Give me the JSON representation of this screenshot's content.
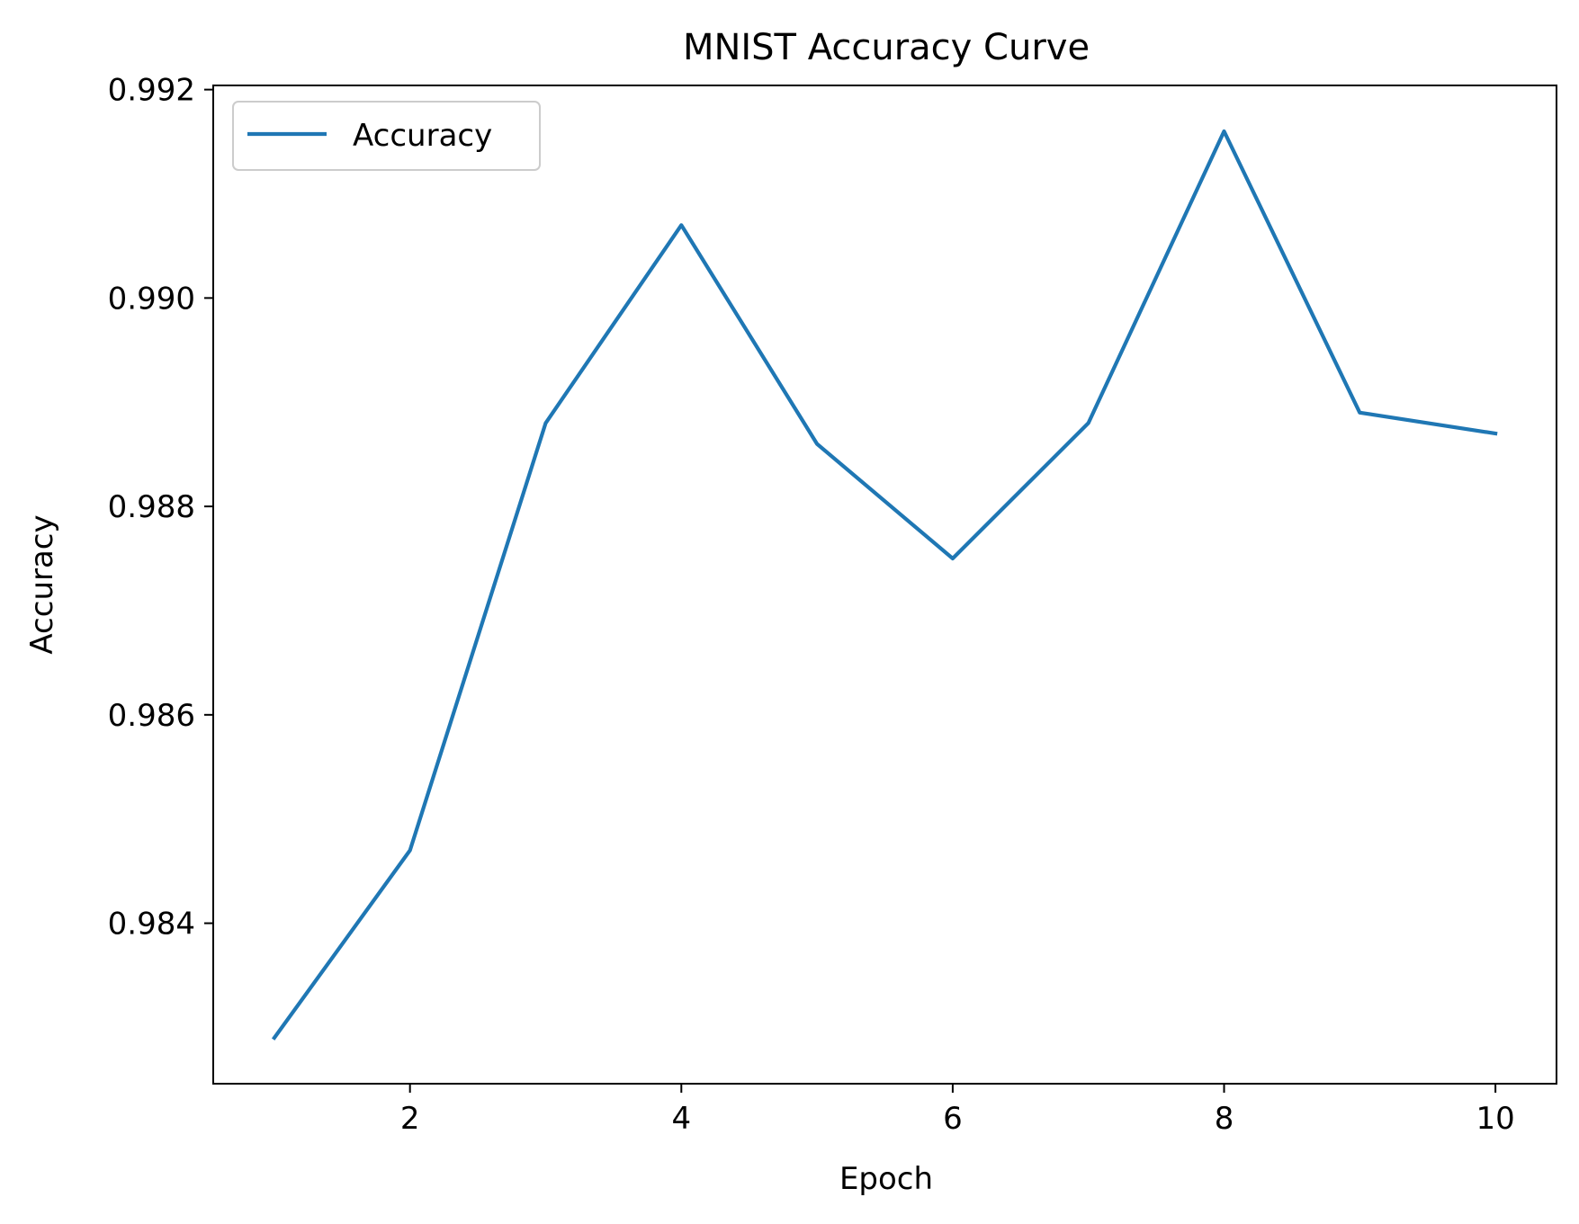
{
  "chart_data": {
    "type": "line",
    "title": "MNIST Accuracy Curve",
    "xlabel": "Epoch",
    "ylabel": "Accuracy",
    "xlim": [
      0.55,
      10.45
    ],
    "ylim": [
      0.98246,
      0.99204
    ],
    "xticks": [
      2,
      4,
      6,
      8,
      10
    ],
    "xtick_labels": [
      "2",
      "4",
      "6",
      "8",
      "10"
    ],
    "yticks": [
      0.984,
      0.986,
      0.988,
      0.99,
      0.992
    ],
    "ytick_labels": [
      "0.984",
      "0.986",
      "0.988",
      "0.990",
      "0.992"
    ],
    "grid": false,
    "legend_position": "top-left",
    "series": [
      {
        "name": "Accuracy",
        "color": "#1f77b4",
        "x": [
          1,
          2,
          3,
          4,
          5,
          6,
          7,
          8,
          9,
          10
        ],
        "values": [
          0.9829,
          0.9847,
          0.9888,
          0.9907,
          0.9886,
          0.9875,
          0.9888,
          0.9916,
          0.9889,
          0.9887
        ]
      }
    ]
  }
}
